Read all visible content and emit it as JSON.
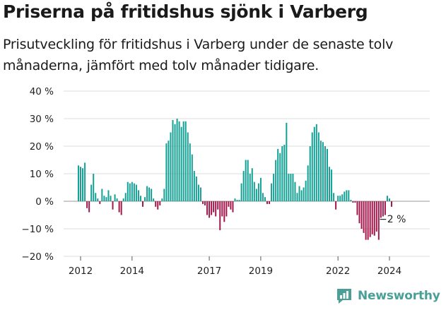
{
  "title": "Priserna på fritidshus sjönk i Varberg",
  "subtitle": "Prisutveckling för fritidshus i Varberg under de senaste tolv månaderna, jämfört med tolv månader tidigare.",
  "brand": "Newsworthy",
  "colors": {
    "positive": "#14a195",
    "negative": "#a3174a",
    "grid": "#dcdcdc",
    "brand": "#4a9f96"
  },
  "chart_data": {
    "type": "bar",
    "ylim": [
      -20,
      40
    ],
    "yticks": [
      -20,
      -10,
      0,
      10,
      20,
      30,
      40
    ],
    "ytick_labels": [
      "−20 %",
      "−10 %",
      "0 %",
      "10 %",
      "20 %",
      "30 %",
      "40 %"
    ],
    "xticks": [
      2012,
      2014,
      2017,
      2019,
      2022,
      2024
    ],
    "grid": true,
    "legend": "none",
    "annotation": {
      "text": "−2 %",
      "value": -2
    },
    "start": "2011-12",
    "frequency": "monthly",
    "values": [
      13,
      12.5,
      12,
      14,
      -2.5,
      -4,
      6,
      10,
      3,
      1,
      -1,
      4.5,
      2,
      1.5,
      4,
      2,
      -3,
      2.5,
      1,
      -4,
      -5,
      1,
      3,
      7,
      6.5,
      7,
      6.5,
      6,
      4,
      2,
      -2,
      1.5,
      5.5,
      5,
      4.5,
      1,
      -2,
      -3,
      -1.5,
      1,
      4.5,
      21,
      22,
      25,
      29.5,
      28,
      30,
      29,
      27,
      29,
      29,
      25,
      21,
      17,
      11,
      9,
      6,
      5,
      -1,
      -1.5,
      -5,
      -6,
      -5,
      -4,
      -5.5,
      -3,
      -10.5,
      -5.5,
      -7.5,
      -5.5,
      -2,
      -3,
      -4,
      1,
      0.5,
      0.5,
      6.5,
      11,
      15,
      15,
      10,
      12,
      7,
      4.5,
      6.5,
      8.5,
      3,
      1.5,
      -1,
      -1,
      6.5,
      10,
      15,
      19,
      17.5,
      20,
      20.5,
      28.5,
      10,
      10,
      10,
      7,
      3,
      5.5,
      4,
      5,
      7.5,
      13,
      20,
      25,
      27,
      28,
      25,
      22,
      21.5,
      20,
      19,
      12.5,
      11.5,
      3,
      -3,
      2,
      2,
      2.5,
      3.5,
      4,
      4,
      0.5,
      -0.5,
      -0.5,
      -5,
      -8,
      -10,
      -11.5,
      -14,
      -14,
      -13,
      -12,
      -12.5,
      -11,
      -14,
      -6,
      -5.5,
      -5,
      2,
      1,
      -2
    ]
  }
}
